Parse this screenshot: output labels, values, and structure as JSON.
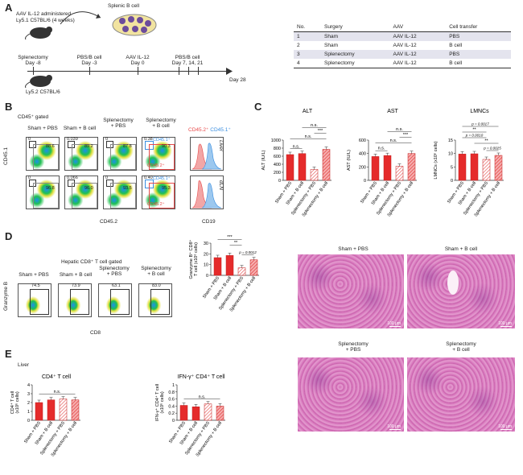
{
  "panels": {
    "a": "A",
    "b": "B",
    "c": "C",
    "d": "D",
    "e": "E"
  },
  "scheme": {
    "aav_line1": "AAV IL-12 administered",
    "aav_line2": "Ly5.1 C57BL/6 (4 weeks)",
    "splenic": "Splenic B cell",
    "timeline": [
      {
        "l1": "Splenectomy",
        "l2": "Day -8"
      },
      {
        "l1": "PBS/B cell",
        "l2": "Day -3"
      },
      {
        "l1": "AAV IL-12",
        "l2": "Day 0"
      },
      {
        "l1": "PBS/B cell",
        "l2": "Day 7, 14, 21"
      }
    ],
    "end": "Day 28",
    "mouse2": "Ly5.2 C57BL/6"
  },
  "table": {
    "headers": [
      "No.",
      "Surgery",
      "AAV",
      "Cell transfer"
    ],
    "rows": [
      [
        "1",
        "Sham",
        "AAV IL-12",
        "PBS"
      ],
      [
        "2",
        "Sham",
        "AAV IL-12",
        "B cell"
      ],
      [
        "3",
        "Splenectomy",
        "AAV IL-12",
        "PBS"
      ],
      [
        "4",
        "Splenectomy",
        "AAV IL-12",
        "B cell"
      ]
    ]
  },
  "panel_b": {
    "gated": "CD45⁺ gated",
    "groups": [
      "Sham + PBS",
      "Sham + B cell",
      "Splenectomy\n+ PBS",
      "Splenectomy\n+ B cell"
    ],
    "row1_small": [
      "0",
      "0.039",
      "0",
      "0.38"
    ],
    "row1_big": [
      "88.6",
      "89.2",
      "87.8",
      "90.3"
    ],
    "row2_small": [
      "0",
      "0.066",
      "0",
      "0.40"
    ],
    "row2_big": [
      "96.8",
      "96.0",
      "93.5",
      "95.3"
    ],
    "gate_cd451": "CD45.1⁺",
    "gate_cd452": "CD45.2⁺",
    "ylabel": "CD45.1",
    "xlabel": "CD45.2",
    "legend_red": "CD45.2⁺",
    "legend_blue": "CD45.1⁺",
    "tissue1": "Liver",
    "tissue2": "dLN",
    "hist_xlabel": "CD19",
    "colors": {
      "red": "#e84a4a",
      "blue": "#3a8ee0"
    }
  },
  "panel_d": {
    "title": "Hepatic CD8⁺ T cell gated",
    "groups": [
      "Sham + PBS",
      "Sham + B cell",
      "Splenectomy\n+ PBS",
      "Splenectomy\n+ B cell"
    ],
    "values": [
      "74.5",
      "73.9",
      "63.1",
      "83.0"
    ],
    "ylabel": "Granzyme B",
    "xlabel": "CD8"
  },
  "panel_e": {
    "tissue": "Liver"
  },
  "histology": [
    {
      "label": "Sham + PBS",
      "scale": "100 μm"
    },
    {
      "label": "Sham + B cell",
      "scale": "100 μm"
    },
    {
      "label": "Splenectomy\n+ PBS",
      "scale": "100 μm"
    },
    {
      "label": "Splenectomy\n+ B cell",
      "scale": "100 μm"
    }
  ],
  "chart_data": [
    {
      "id": "alt",
      "type": "bar",
      "title": "ALT",
      "ylabel": "ALT (IU/L)",
      "ylim": [
        0,
        1000
      ],
      "yticks": [
        0,
        200,
        400,
        600,
        800,
        1000
      ],
      "categories": [
        "Sham + PBS",
        "Sham + B cell",
        "Splenectomy + PBS",
        "Splenectomy + B cell"
      ],
      "values": [
        640,
        665,
        270,
        770
      ],
      "sig": [
        {
          "a": 0,
          "b": 1,
          "t": "n.s.",
          "lvl": 0
        },
        {
          "a": 0,
          "b": 3,
          "t": "n.s.",
          "lvl": 1
        },
        {
          "a": 2,
          "b": 3,
          "t": "***",
          "lvl": 2
        },
        {
          "a": 1,
          "b": 3,
          "t": "n.s.",
          "lvl": 3
        }
      ]
    },
    {
      "id": "ast",
      "type": "bar",
      "title": "AST",
      "ylabel": "AST (IU/L)",
      "ylim": [
        0,
        600
      ],
      "yticks": [
        0,
        200,
        400,
        600
      ],
      "categories": [
        "Sham + PBS",
        "Sham + B cell",
        "Splenectomy + PBS",
        "Splenectomy + B cell"
      ],
      "values": [
        355,
        370,
        210,
        400
      ],
      "sig": [
        {
          "a": 0,
          "b": 1,
          "t": "n.s.",
          "lvl": 0
        },
        {
          "a": 0,
          "b": 3,
          "t": "n.s.",
          "lvl": 1
        },
        {
          "a": 2,
          "b": 3,
          "t": "***",
          "lvl": 2
        },
        {
          "a": 1,
          "b": 3,
          "t": "n.s.",
          "lvl": 3
        }
      ]
    },
    {
      "id": "lmnc",
      "type": "bar",
      "title": "LMNCs",
      "ylabel": "LMNCs (x10⁶ cells)",
      "ylim": [
        0,
        15
      ],
      "yticks": [
        0,
        5,
        10,
        15
      ],
      "categories": [
        "Sham + PBS",
        "Sham + B cell",
        "Splenectomy + PBS",
        "Splenectomy + B cell"
      ],
      "values": [
        9.8,
        9.9,
        7.8,
        9.3
      ],
      "sig": [
        {
          "a": 2,
          "b": 3,
          "t": "p = 0.0025",
          "lvl": 0
        },
        {
          "a": 1,
          "b": 3,
          "t": "**",
          "lvl": 1
        },
        {
          "a": 0,
          "b": 2,
          "t": "p = 0.0010",
          "lvl": 2
        },
        {
          "a": 0,
          "b": 2,
          "t": "**",
          "lvl": 3
        },
        {
          "a": 0,
          "b": 3,
          "t": "p = 0.0017",
          "lvl": 4
        }
      ]
    },
    {
      "id": "gzmb",
      "type": "bar",
      "title": "",
      "ylabel": "Granzyme B⁺ CD8⁺\nT cell (x10⁶ cells)",
      "ylim": [
        0,
        30
      ],
      "yticks": [
        0,
        10,
        20,
        30
      ],
      "categories": [
        "Sham + PBS",
        "Sham + B cell",
        "Splenectomy + PBS",
        "Splenectomy + B cell"
      ],
      "values": [
        16.5,
        18.5,
        7,
        14.5
      ],
      "sig": [
        {
          "a": 2,
          "b": 3,
          "t": "p = 0.0012",
          "lvl": 0
        },
        {
          "a": 1,
          "b": 2,
          "t": "**",
          "lvl": 1
        },
        {
          "a": 0,
          "b": 2,
          "t": "***",
          "lvl": 2
        },
        {
          "a": 1,
          "b": 3,
          "t": "***",
          "lvl": 3
        }
      ]
    },
    {
      "id": "cd4",
      "type": "bar",
      "title": "CD4⁺ T cell",
      "ylabel": "CD4⁺ T cell\n(x10⁶ cells)",
      "ylim": [
        0,
        4
      ],
      "yticks": [
        0,
        1,
        2,
        3,
        4
      ],
      "categories": [
        "Sham + PBS",
        "Sham + B cell",
        "Splenectomy + PBS",
        "Splenectomy + B cell"
      ],
      "values": [
        2.0,
        2.3,
        2.4,
        2.3
      ],
      "sig": [
        {
          "a": 0,
          "b": 3,
          "t": "n.s.",
          "lvl": 0
        }
      ]
    },
    {
      "id": "ifng",
      "type": "bar",
      "title": "IFN-γ⁺ CD4⁺ T cell",
      "ylabel": "IFN-γ⁺ CD4⁺ T cell\n(x10⁶ cells)",
      "ylim": [
        0,
        1.0
      ],
      "yticks": [
        0.0,
        0.2,
        0.4,
        0.6,
        0.8,
        1.0
      ],
      "categories": [
        "Sham + PBS",
        "Sham + B cell",
        "Splenectomy + PBS",
        "Splenectomy + B cell"
      ],
      "values": [
        0.42,
        0.38,
        0.46,
        0.4
      ],
      "sig": [
        {
          "a": 0,
          "b": 3,
          "t": "n.s.",
          "lvl": 0
        }
      ]
    }
  ]
}
